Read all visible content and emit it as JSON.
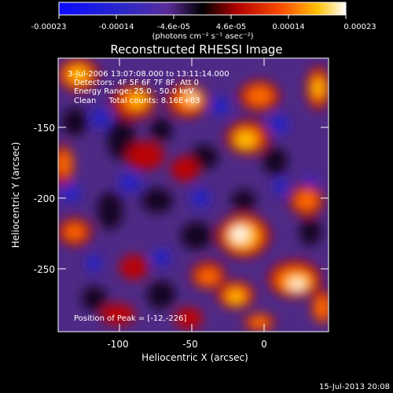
{
  "colorbar": {
    "tick_labels": [
      "-0.00023",
      "-0.00014",
      "-4.6e-05",
      "4.6e-05",
      "0.00014",
      "0.00023"
    ],
    "units_label": "(photons cm⁻² s⁻¹ asec⁻²)"
  },
  "title": "Reconstructed RHESSI Image",
  "info": {
    "time_range": "3-Jul-2006 13:07:08.000 to 13:11:14.000",
    "detectors": "Detectors: 4F 5F 6F 7F 8F, Att 0",
    "energy": "Energy Range: 25.0 - 50.0 keV",
    "method_counts": "Clean     Total counts: 8.16E+03",
    "peak": "Position of Peak = [-12,-226]"
  },
  "axes": {
    "xlabel": "Heliocentric X (arcsec)",
    "ylabel": "Heliocentric Y (arcsec)",
    "xticks": [
      -100,
      -50,
      0
    ],
    "yticks": [
      -150,
      -200,
      -250
    ],
    "xlim": [
      -142,
      47
    ],
    "ylim": [
      -297,
      -106
    ]
  },
  "footer": {
    "date": "15-Jul-2013 20:08"
  }
}
